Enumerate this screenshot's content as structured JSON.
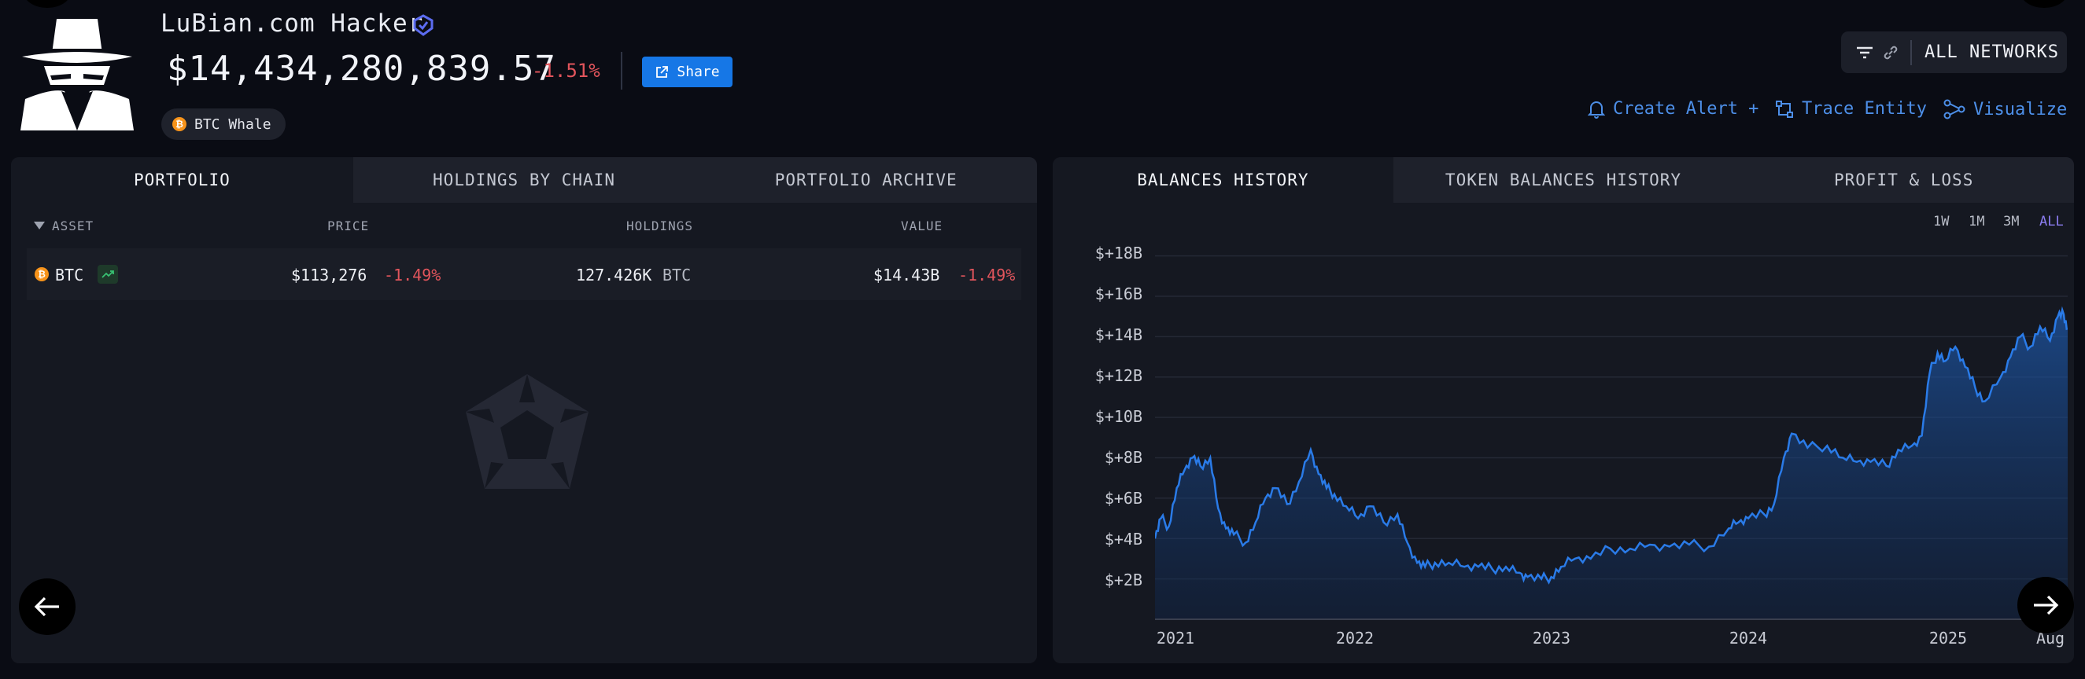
{
  "entity": {
    "name": "LuBian.com Hacker",
    "balance": "$14,434,280,839.57",
    "balance_change": "-1.51%",
    "share_label": "Share",
    "tag_label": "BTC Whale",
    "tag_icon_letter": "₿"
  },
  "header": {
    "network_label": "ALL NETWORKS",
    "create_alert": "Create Alert +",
    "trace_entity": "Trace Entity",
    "visualize": "Visualize"
  },
  "portfolio": {
    "tabs": [
      "PORTFOLIO",
      "HOLDINGS BY CHAIN",
      "PORTFOLIO ARCHIVE"
    ],
    "columns": {
      "asset": "ASSET",
      "price": "PRICE",
      "holdings": "HOLDINGS",
      "value": "VALUE"
    },
    "rows": [
      {
        "asset": "BTC",
        "price": "$113,276",
        "price_change": "-1.49%",
        "holdings": "127.426K",
        "holdings_unit": "BTC",
        "value": "$14.43B",
        "value_change": "-1.49%"
      }
    ]
  },
  "history": {
    "tabs": [
      "BALANCES HISTORY",
      "TOKEN BALANCES HISTORY",
      "PROFIT & LOSS"
    ],
    "ranges": [
      "1W",
      "1M",
      "3M",
      "ALL"
    ],
    "active_range": "ALL"
  },
  "chart_data": {
    "type": "area",
    "title": "",
    "xlabel": "",
    "ylabel": "",
    "x_ticks": [
      "2021",
      "2022",
      "2023",
      "2024",
      "2025",
      "Aug"
    ],
    "y_ticks": [
      "$+2B",
      "$+4B",
      "$+6B",
      "$+8B",
      "$+10B",
      "$+12B",
      "$+14B",
      "$+16B",
      "$+18B"
    ],
    "ylim": [
      0,
      19
    ],
    "xlim": [
      2020.99,
      2025.62
    ],
    "grid": true,
    "series": [
      {
        "values_unit": "billions USD",
        "x": [
          2020.99,
          2021.02,
          2021.06,
          2021.1,
          2021.14,
          2021.18,
          2021.22,
          2021.27,
          2021.31,
          2021.35,
          2021.39,
          2021.45,
          2021.5,
          2021.55,
          2021.6,
          2021.66,
          2021.72,
          2021.78,
          2021.82,
          2021.86,
          2021.9,
          2021.96,
          2022.02,
          2022.08,
          2022.15,
          2022.22,
          2022.27,
          2022.32,
          2022.36,
          2022.41,
          2022.48,
          2022.56,
          2022.63,
          2022.7,
          2022.77,
          2022.84,
          2022.88,
          2022.95,
          2023.0,
          2023.05,
          2023.12,
          2023.2,
          2023.3,
          2023.4,
          2023.5,
          2023.6,
          2023.7,
          2023.8,
          2023.9,
          2023.95,
          2024.0,
          2024.08,
          2024.13,
          2024.18,
          2024.22,
          2024.3,
          2024.4,
          2024.48,
          2024.55,
          2024.62,
          2024.7,
          2024.76,
          2024.83,
          2024.88,
          2024.92,
          2024.96,
          2025.0,
          2025.05,
          2025.1,
          2025.15,
          2025.2,
          2025.28,
          2025.33,
          2025.38,
          2025.43,
          2025.48,
          2025.53,
          2025.57,
          2025.6,
          2025.62
        ],
        "values": [
          4.0,
          5.0,
          4.6,
          6.5,
          7.4,
          8.0,
          7.6,
          8.0,
          5.5,
          4.5,
          4.2,
          3.8,
          4.8,
          6.0,
          6.5,
          5.7,
          6.8,
          8.4,
          7.2,
          6.5,
          6.2,
          5.6,
          5.0,
          5.6,
          4.8,
          5.2,
          3.8,
          2.8,
          2.6,
          2.8,
          2.8,
          2.6,
          2.6,
          2.5,
          2.6,
          2.3,
          2.1,
          2.0,
          2.1,
          2.6,
          3.0,
          3.0,
          3.5,
          3.5,
          3.7,
          3.6,
          3.7,
          3.6,
          4.5,
          4.8,
          5.0,
          5.2,
          5.7,
          8.0,
          9.2,
          8.5,
          8.6,
          8.0,
          7.8,
          7.8,
          7.6,
          8.4,
          8.6,
          9.1,
          12.2,
          13.2,
          12.8,
          13.5,
          12.5,
          11.5,
          10.8,
          12.0,
          13.0,
          14.0,
          13.5,
          14.5,
          13.8,
          15.0,
          15.1,
          14.4
        ]
      }
    ]
  }
}
